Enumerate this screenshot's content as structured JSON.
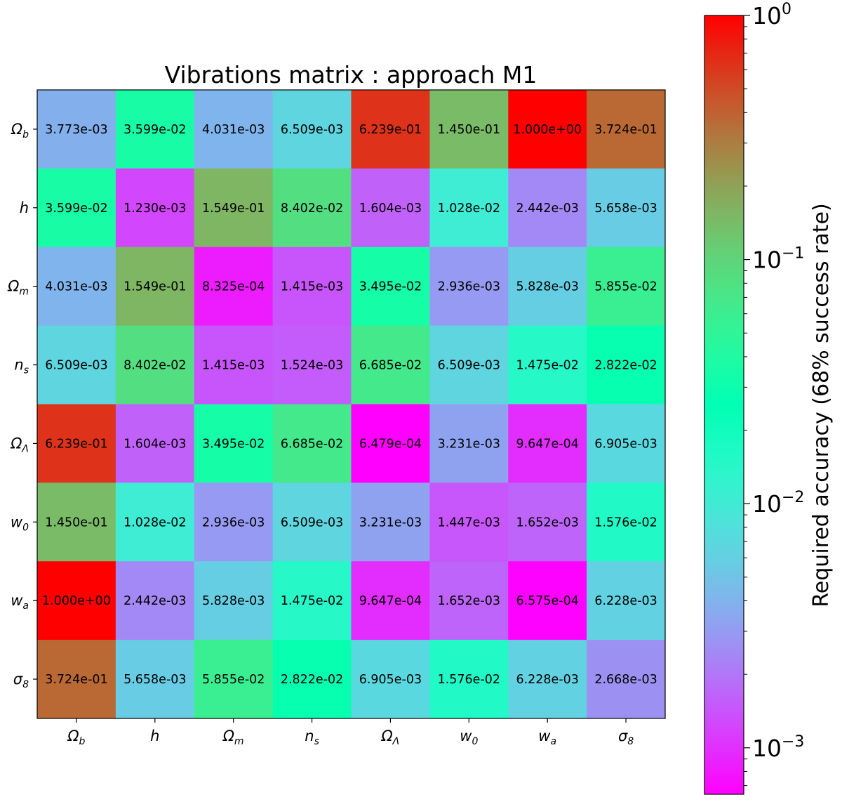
{
  "chart_data": {
    "type": "heatmap",
    "title": "Vibrations matrix : approach M1",
    "colormap": "rainbow",
    "scale": "log",
    "color_range": [
      0.000645,
      1.0
    ],
    "row_labels": [
      {
        "base": "Ω",
        "sub": "b"
      },
      {
        "base": "h",
        "sub": ""
      },
      {
        "base": "Ω",
        "sub": "m"
      },
      {
        "base": "n",
        "sub": "s"
      },
      {
        "base": "Ω",
        "sub": "Λ"
      },
      {
        "base": "w",
        "sub": "0"
      },
      {
        "base": "w",
        "sub": "a"
      },
      {
        "base": "σ",
        "sub": "8"
      }
    ],
    "col_labels": [
      {
        "base": "Ω",
        "sub": "b"
      },
      {
        "base": "h",
        "sub": ""
      },
      {
        "base": "Ω",
        "sub": "m"
      },
      {
        "base": "n",
        "sub": "s"
      },
      {
        "base": "Ω",
        "sub": "Λ"
      },
      {
        "base": "w",
        "sub": "0"
      },
      {
        "base": "w",
        "sub": "a"
      },
      {
        "base": "σ",
        "sub": "8"
      }
    ],
    "values": [
      [
        "3.773e-03",
        "3.599e-02",
        "4.031e-03",
        "6.509e-03",
        "6.239e-01",
        "1.450e-01",
        "1.000e+00",
        "3.724e-01"
      ],
      [
        "3.599e-02",
        "1.230e-03",
        "1.549e-01",
        "8.402e-02",
        "1.604e-03",
        "1.028e-02",
        "2.442e-03",
        "5.658e-03"
      ],
      [
        "4.031e-03",
        "1.549e-01",
        "8.325e-04",
        "1.415e-03",
        "3.495e-02",
        "2.936e-03",
        "5.828e-03",
        "5.855e-02"
      ],
      [
        "6.509e-03",
        "8.402e-02",
        "1.415e-03",
        "1.524e-03",
        "6.685e-02",
        "6.509e-03",
        "1.475e-02",
        "2.822e-02"
      ],
      [
        "6.239e-01",
        "1.604e-03",
        "3.495e-02",
        "6.685e-02",
        "6.479e-04",
        "3.231e-03",
        "9.647e-04",
        "6.905e-03"
      ],
      [
        "1.450e-01",
        "1.028e-02",
        "2.936e-03",
        "6.509e-03",
        "3.231e-03",
        "1.447e-03",
        "1.652e-03",
        "1.576e-02"
      ],
      [
        "1.000e+00",
        "2.442e-03",
        "5.828e-03",
        "1.475e-02",
        "9.647e-04",
        "1.652e-03",
        "6.575e-04",
        "6.228e-03"
      ],
      [
        "3.724e-01",
        "5.658e-03",
        "5.855e-02",
        "2.822e-02",
        "6.905e-03",
        "1.576e-02",
        "6.228e-03",
        "2.668e-03"
      ]
    ],
    "colorbar": {
      "label": "Required accuracy (68% success rate)",
      "ticks": [
        {
          "value": 1.0,
          "base": "10",
          "exp": "0"
        },
        {
          "value": 0.1,
          "base": "10",
          "exp": "−1"
        },
        {
          "value": 0.01,
          "base": "10",
          "exp": "−2"
        },
        {
          "value": 0.001,
          "base": "10",
          "exp": "−3"
        }
      ]
    }
  }
}
